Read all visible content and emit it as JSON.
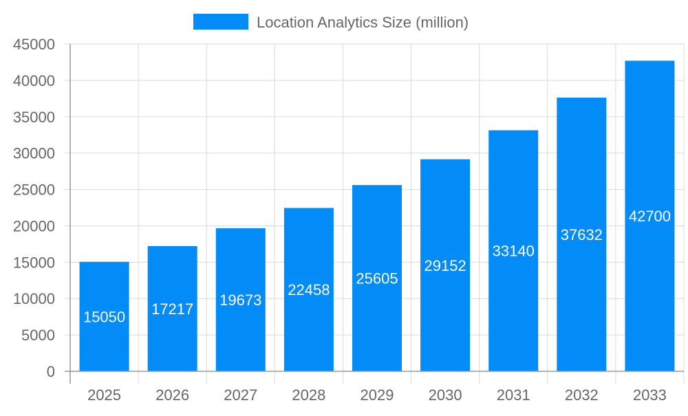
{
  "chart_data": {
    "type": "bar",
    "title": "",
    "xlabel": "",
    "ylabel": "",
    "categories": [
      "2025",
      "2026",
      "2027",
      "2028",
      "2029",
      "2030",
      "2031",
      "2032",
      "2033"
    ],
    "series": [
      {
        "name": "Location Analytics Size (million)",
        "values": [
          15050,
          17217,
          19673,
          22458,
          25605,
          29152,
          33140,
          37632,
          42700
        ],
        "color": "#038cf8"
      }
    ],
    "ylim": [
      0,
      45000
    ],
    "yticks": [
      "0",
      "5000",
      "10000",
      "15000",
      "20000",
      "25000",
      "30000",
      "35000",
      "40000",
      "45000"
    ],
    "grid": true,
    "legend_position": "top-center",
    "data_labels": true
  }
}
